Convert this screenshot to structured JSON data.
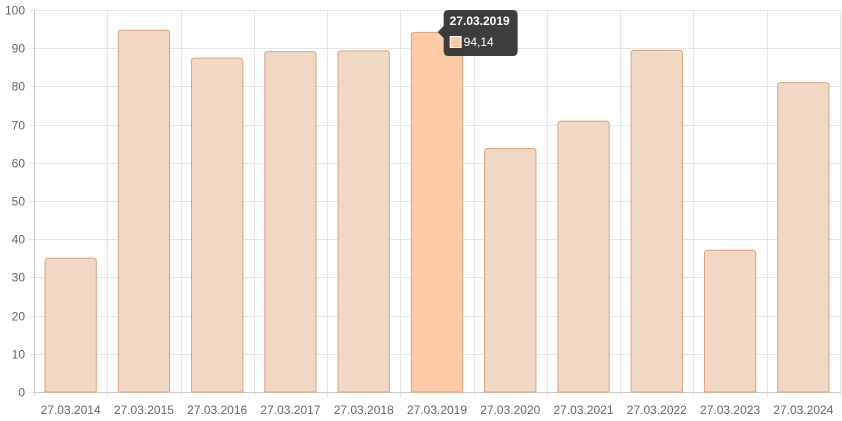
{
  "chart_data": {
    "type": "bar",
    "title": "",
    "xlabel": "",
    "ylabel": "",
    "categories": [
      "27.03.2014",
      "27.03.2015",
      "27.03.2016",
      "27.03.2017",
      "27.03.2018",
      "27.03.2019",
      "27.03.2020",
      "27.03.2021",
      "27.03.2022",
      "27.03.2023",
      "27.03.2024"
    ],
    "values": [
      35,
      94.7,
      87.4,
      89.1,
      89.3,
      94.14,
      63.7,
      70.9,
      89.4,
      37.1,
      81
    ],
    "ylim": [
      0,
      100
    ],
    "yticks": [
      0,
      10,
      20,
      30,
      40,
      50,
      60,
      70,
      80,
      90,
      100
    ],
    "grid": true,
    "legend": "none",
    "colors": {
      "bar_fill": "#f1d8c5",
      "bar_stroke": "#e0a07c",
      "bar_highlight_fill": "#fdcba6",
      "grid": "#e6e6e6",
      "axis": "#cccccc",
      "tick_text": "#666666",
      "tooltip_bg": "#333333"
    },
    "tooltip": {
      "category_index": 5,
      "title": "27.03.2019",
      "value_label": "94,14"
    }
  }
}
